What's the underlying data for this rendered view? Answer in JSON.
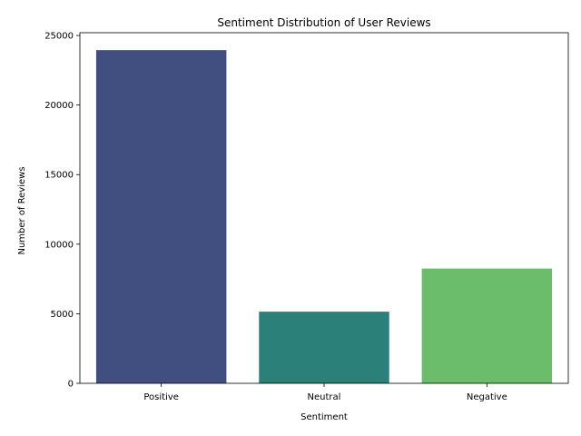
{
  "chart_data": {
    "type": "bar",
    "title": "Sentiment Distribution of User Reviews",
    "xlabel": "Sentiment",
    "ylabel": "Number of Reviews",
    "categories": [
      "Positive",
      "Neutral",
      "Negative"
    ],
    "values": [
      23950,
      5150,
      8250
    ],
    "colors": [
      "#414f80",
      "#2b807a",
      "#6bbd6b"
    ],
    "ylim": [
      0,
      25200
    ],
    "yticks": [
      0,
      5000,
      10000,
      15000,
      20000,
      25000
    ],
    "grid": false,
    "legend": "none"
  }
}
